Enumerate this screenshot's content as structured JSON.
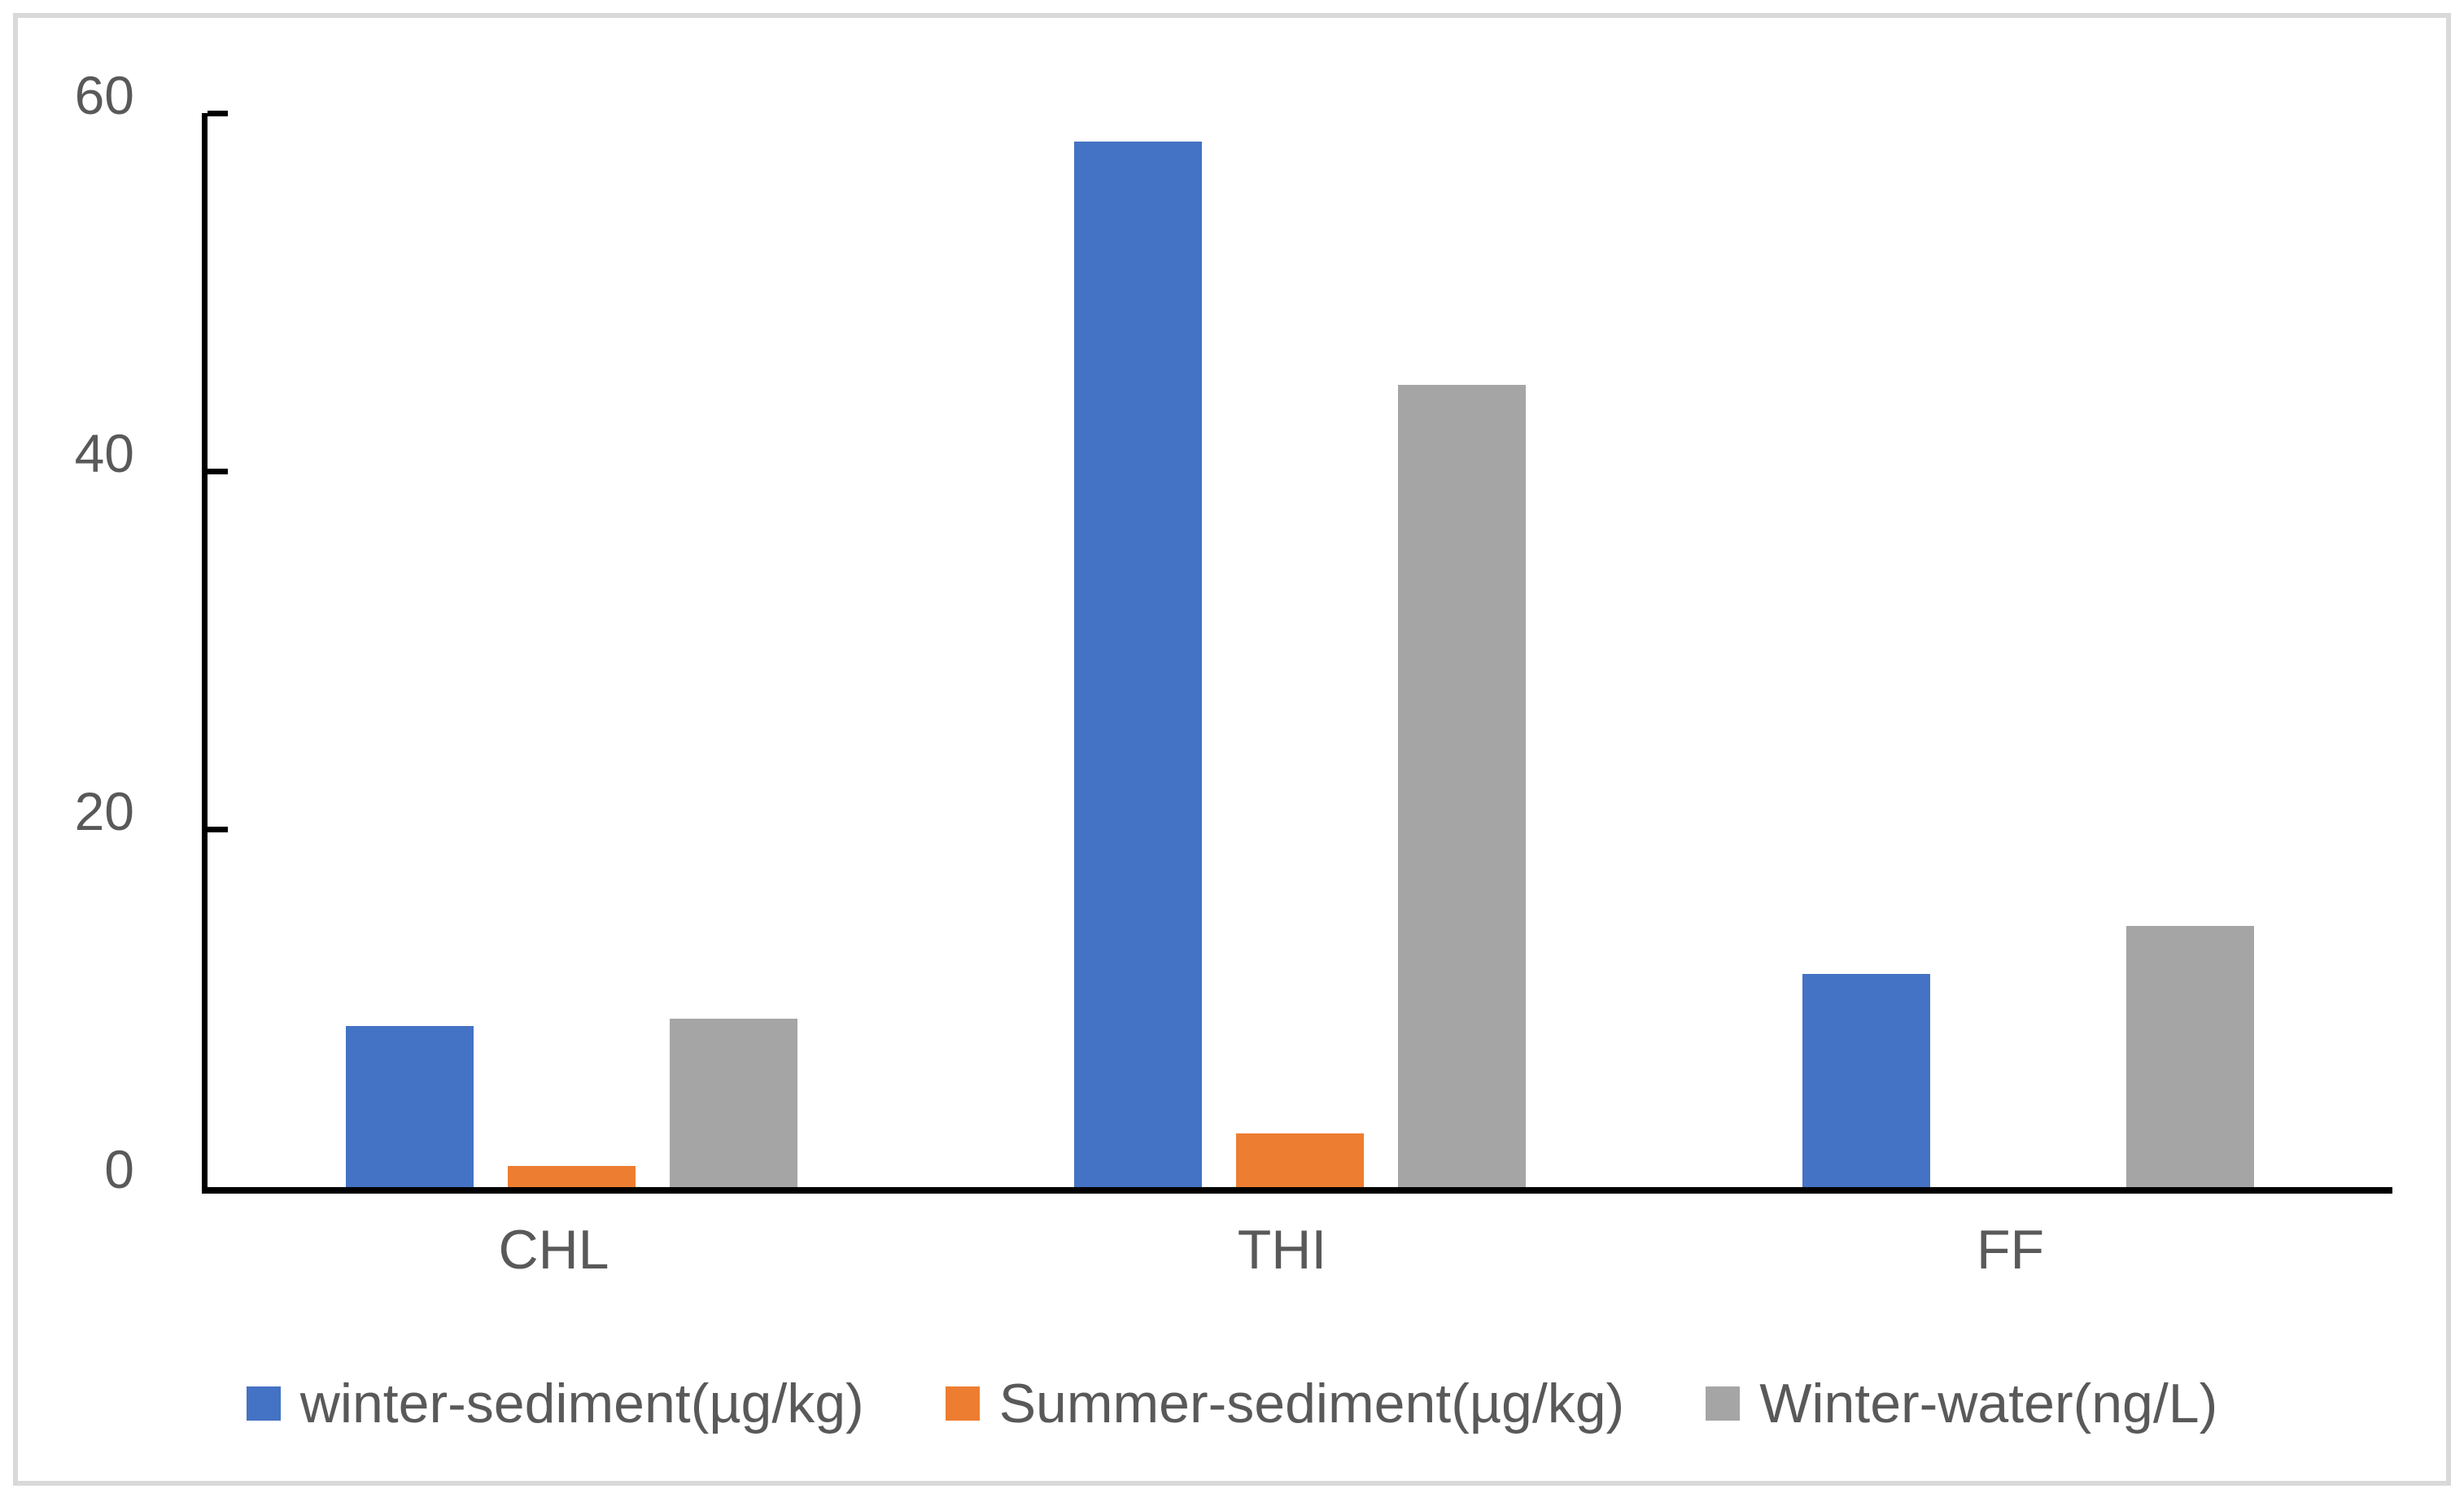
{
  "frame": {
    "border_color": "#D9D9D9",
    "background": "#FFFFFF"
  },
  "chart_data": {
    "type": "bar",
    "title": "",
    "xlabel": "",
    "ylabel": "",
    "categories": [
      "CHL",
      "THI",
      "FF"
    ],
    "series": [
      {
        "name": "winter-sediment(µg/kg)",
        "color": "#4472C4",
        "values": [
          9.0,
          58.4,
          11.9
        ]
      },
      {
        "name": "Summer-sediment(µg/kg)",
        "color": "#ED7D31",
        "values": [
          1.2,
          3.0,
          0
        ]
      },
      {
        "name": "Winter-water(ng/L)",
        "color": "#A5A5A5",
        "values": [
          9.4,
          44.8,
          14.6
        ]
      }
    ],
    "ylim": [
      0,
      60
    ],
    "yticks": [
      0,
      20,
      40,
      60
    ],
    "grid": false,
    "legend_position": "bottom",
    "axis_color": "#000000",
    "label_color": "#595959"
  }
}
